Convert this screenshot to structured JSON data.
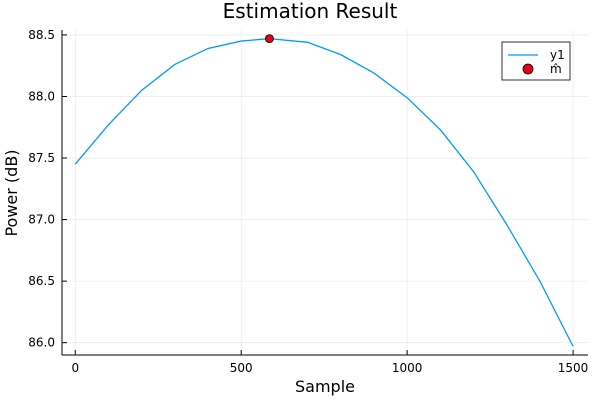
{
  "chart_data": {
    "type": "line",
    "title": "Estimation Result",
    "xlabel": "Sample",
    "ylabel": "Power (dB)",
    "xlim": [
      -40,
      1545
    ],
    "ylim": [
      85.9,
      88.54
    ],
    "xticks": [
      0,
      500,
      1000,
      1500
    ],
    "xtick_labels": [
      "0",
      "500",
      "1000",
      "1500"
    ],
    "yticks": [
      86.0,
      86.5,
      87.0,
      87.5,
      88.0,
      88.5
    ],
    "ytick_labels": [
      "86.0",
      "86.5",
      "87.0",
      "87.5",
      "88.0",
      "88.5"
    ],
    "grid": true,
    "legend_position": "top-right",
    "series": [
      {
        "name": "y1",
        "kind": "line",
        "color": "#009AFA",
        "x": [
          0,
          100,
          200,
          300,
          400,
          500,
          585,
          700,
          800,
          900,
          1000,
          1100,
          1200,
          1300,
          1400,
          1500
        ],
        "y": [
          87.45,
          87.77,
          88.05,
          88.26,
          88.39,
          88.45,
          88.47,
          88.44,
          88.34,
          88.19,
          87.99,
          87.73,
          87.39,
          86.96,
          86.5,
          85.97
        ]
      },
      {
        "name": "m̂",
        "kind": "scatter",
        "color": "#E5001A",
        "x": [
          585
        ],
        "y": [
          88.47
        ]
      }
    ]
  }
}
